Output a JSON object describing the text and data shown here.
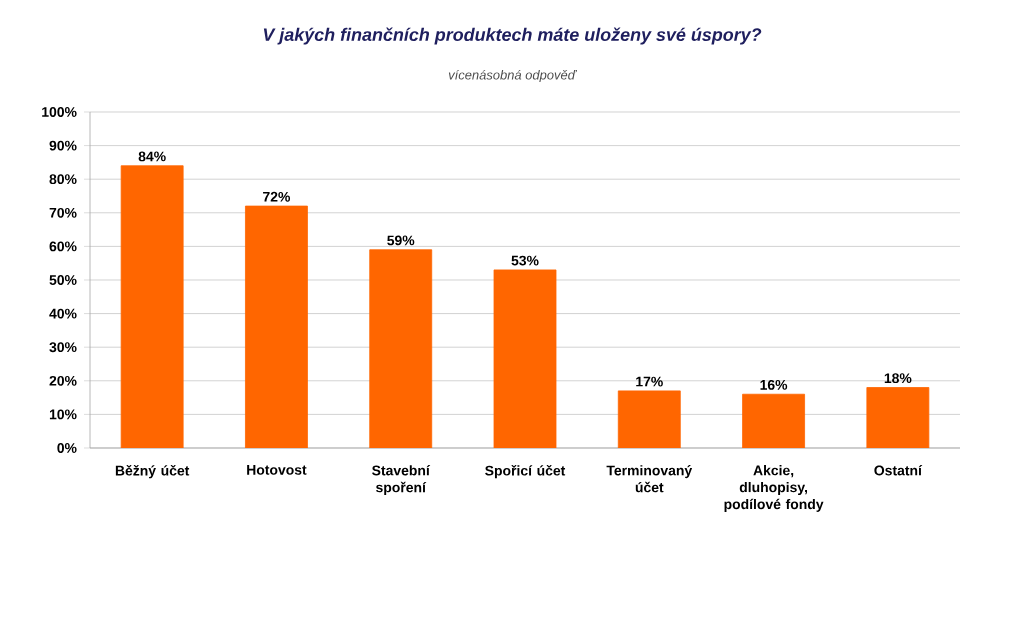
{
  "chart_data": {
    "type": "bar",
    "title": "V jakých finančních produktech máte uloženy své úspory?",
    "subtitle": "vícenásobná odpověď",
    "categories": [
      "Běžný účet",
      "Hotovost",
      "Stavební spoření",
      "Spořicí účet",
      "Terminovaný účet",
      "Akcie, dluhopisy, podílové fondy",
      "Ostatní"
    ],
    "values": [
      84,
      72,
      59,
      53,
      17,
      16,
      18
    ],
    "value_labels": [
      "84%",
      "72%",
      "59%",
      "53%",
      "17%",
      "16%",
      "18%"
    ],
    "color": "#ff6600",
    "ylim": [
      0,
      100
    ],
    "yticks": [
      {
        "value": 0,
        "label": "0%"
      },
      {
        "value": 10,
        "label": "10%"
      },
      {
        "value": 20,
        "label": "20%"
      },
      {
        "value": 30,
        "label": "30%"
      },
      {
        "value": 40,
        "label": "40%"
      },
      {
        "value": 50,
        "label": "50%"
      },
      {
        "value": 60,
        "label": "60%"
      },
      {
        "value": 70,
        "label": "70%"
      },
      {
        "value": 80,
        "label": "80%"
      },
      {
        "value": 90,
        "label": "90%"
      },
      {
        "value": 100,
        "label": "100%"
      }
    ],
    "grid": "y"
  }
}
